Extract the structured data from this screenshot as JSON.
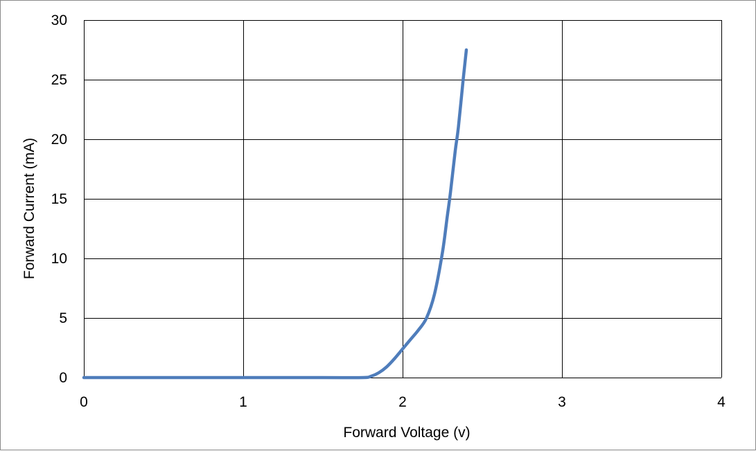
{
  "chart_data": {
    "type": "line",
    "title": "",
    "xlabel": "Forward Voltage (v)",
    "ylabel": "Forward Current (mA)",
    "xlim": [
      0,
      4
    ],
    "ylim": [
      0,
      30
    ],
    "x_ticks": [
      0,
      1,
      2,
      3,
      4
    ],
    "y_ticks": [
      0,
      5,
      10,
      15,
      20,
      25,
      30
    ],
    "grid": true,
    "legend": "none",
    "series": [
      {
        "color": "#4f7dbb",
        "x": [
          0,
          0.5,
          1.0,
          1.5,
          1.75,
          1.8,
          1.85,
          1.9,
          1.95,
          2.0,
          2.05,
          2.1,
          2.15,
          2.2,
          2.25,
          2.28,
          2.3,
          2.33,
          2.35,
          2.38,
          2.4
        ],
        "y": [
          0,
          0,
          0,
          0,
          0,
          0.1,
          0.4,
          0.9,
          1.6,
          2.4,
          3.2,
          4.0,
          5.0,
          7.0,
          10.5,
          13.5,
          15.5,
          19.0,
          21.0,
          25.0,
          27.5
        ]
      }
    ]
  }
}
